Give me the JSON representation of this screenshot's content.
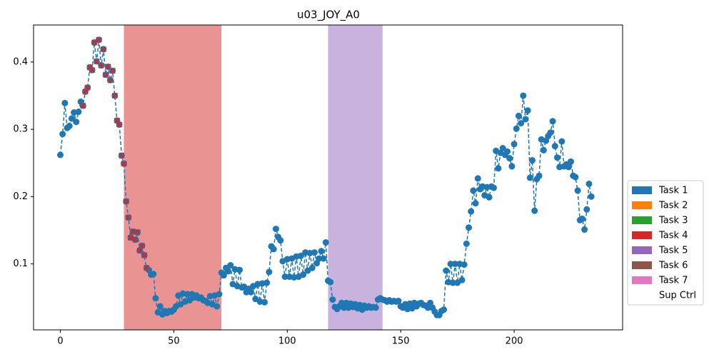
{
  "chart_data": {
    "type": "line",
    "title": "u03_JOY_A0",
    "x": [
      0,
      1,
      2,
      3,
      4,
      5,
      6,
      7,
      8,
      9,
      10,
      11,
      12,
      13,
      14,
      15,
      16,
      17,
      18,
      19,
      20,
      21,
      22,
      23,
      24,
      25,
      26,
      27,
      28,
      29,
      30,
      31,
      32,
      33,
      34,
      35,
      36,
      37,
      38,
      39,
      40,
      41,
      42,
      43,
      44,
      45,
      46,
      47,
      48,
      49,
      50,
      51,
      52,
      53,
      54,
      55,
      56,
      57,
      58,
      59,
      60,
      61,
      62,
      63,
      64,
      65,
      66,
      67,
      68,
      69,
      70,
      71,
      72,
      73,
      74,
      75,
      76,
      77,
      78,
      79,
      80,
      81,
      82,
      83,
      84,
      85,
      86,
      87,
      88,
      89,
      90,
      91,
      92,
      93,
      94,
      95,
      96,
      97,
      98,
      99,
      100,
      101,
      102,
      103,
      104,
      105,
      106,
      107,
      108,
      109,
      110,
      111,
      112,
      113,
      114,
      115,
      116,
      117,
      118,
      119,
      120,
      121,
      122,
      123,
      124,
      125,
      126,
      127,
      128,
      129,
      130,
      131,
      132,
      133,
      134,
      135,
      136,
      137,
      138,
      139,
      140,
      141,
      142,
      143,
      144,
      145,
      146,
      147,
      148,
      149,
      150,
      151,
      152,
      153,
      154,
      155,
      156,
      157,
      158,
      159,
      160,
      161,
      162,
      163,
      164,
      165,
      166,
      167,
      168,
      169,
      170,
      171,
      172,
      173,
      174,
      175,
      176,
      177,
      178,
      179,
      180,
      181,
      182,
      183,
      184,
      185,
      186,
      187,
      188,
      189,
      190,
      191,
      192,
      193,
      194,
      195,
      196,
      197,
      198,
      199,
      200,
      201,
      202,
      203,
      204,
      205,
      206,
      207,
      208,
      209,
      210,
      211,
      212,
      213,
      214,
      215,
      216,
      217,
      218,
      219,
      220,
      221,
      222,
      223,
      224,
      225,
      226,
      227,
      228,
      229,
      230,
      231,
      232,
      233,
      234
    ],
    "series": [
      {
        "color": "#1f77b4",
        "values": [
          0.262,
          0.293,
          0.339,
          0.302,
          0.305,
          0.316,
          0.325,
          0.311,
          0.326,
          0.341,
          0.335,
          0.356,
          0.362,
          0.392,
          0.388,
          0.429,
          0.401,
          0.433,
          0.395,
          0.419,
          0.381,
          0.393,
          0.373,
          0.387,
          0.35,
          0.313,
          0.307,
          0.261,
          0.249,
          0.193,
          0.169,
          0.139,
          0.148,
          0.136,
          0.147,
          0.12,
          0.127,
          0.113,
          0.094,
          0.091,
          0.084,
          0.085,
          0.049,
          0.028,
          0.037,
          0.025,
          0.03,
          0.027,
          0.03,
          0.029,
          0.032,
          0.037,
          0.053,
          0.04,
          0.056,
          0.044,
          0.055,
          0.046,
          0.055,
          0.05,
          0.053,
          0.049,
          0.05,
          0.046,
          0.045,
          0.042,
          0.052,
          0.04,
          0.053,
          0.037,
          0.055,
          0.087,
          0.083,
          0.094,
          0.089,
          0.098,
          0.07,
          0.092,
          0.067,
          0.091,
          0.065,
          0.066,
          0.058,
          0.063,
          0.058,
          0.067,
          0.048,
          0.07,
          0.044,
          0.071,
          0.043,
          0.072,
          0.088,
          0.126,
          0.122,
          0.152,
          0.14,
          0.135,
          0.104,
          0.081,
          0.107,
          0.081,
          0.108,
          0.08,
          0.111,
          0.081,
          0.112,
          0.084,
          0.117,
          0.09,
          0.116,
          0.094,
          0.117,
          0.101,
          0.108,
          0.119,
          0.108,
          0.132,
          0.075,
          0.073,
          0.047,
          0.036,
          0.033,
          0.037,
          0.042,
          0.035,
          0.042,
          0.035,
          0.041,
          0.036,
          0.04,
          0.034,
          0.039,
          0.032,
          0.038,
          0.035,
          0.037,
          0.035,
          0.036,
          0.035,
          0.047,
          0.049,
          0.047,
          0.046,
          0.044,
          0.046,
          0.044,
          0.045,
          0.044,
          0.045,
          0.037,
          0.035,
          0.04,
          0.033,
          0.041,
          0.034,
          0.042,
          0.037,
          0.041,
          0.042,
          0.039,
          0.038,
          0.035,
          0.042,
          0.035,
          0.029,
          0.024,
          0.024,
          0.03,
          0.032,
          0.09,
          0.073,
          0.1,
          0.072,
          0.1,
          0.072,
          0.1,
          0.076,
          0.099,
          0.13,
          0.154,
          0.178,
          0.209,
          0.19,
          0.227,
          0.211,
          0.215,
          0.202,
          0.214,
          0.199,
          0.215,
          0.213,
          0.268,
          0.242,
          0.265,
          0.272,
          0.262,
          0.267,
          0.257,
          0.245,
          0.278,
          0.301,
          0.32,
          0.309,
          0.35,
          0.315,
          0.328,
          0.228,
          0.254,
          0.179,
          0.226,
          0.231,
          0.285,
          0.269,
          0.283,
          0.29,
          0.295,
          0.312,
          0.275,
          0.258,
          0.244,
          0.282,
          0.245,
          0.248,
          0.244,
          0.252,
          0.231,
          0.229,
          0.209,
          0.165,
          0.167,
          0.151,
          0.181,
          0.219,
          0.2
        ]
      }
    ],
    "spans": [
      {
        "start": 28,
        "end": 71,
        "color": "#d62728"
      },
      {
        "start": 118,
        "end": 142,
        "color": "#9467bd"
      }
    ],
    "highlight": {
      "from": 10,
      "to": 38,
      "color": "#d62728"
    },
    "xlim": [
      -11.8,
      247.8
    ],
    "ylim": [
      0.002,
      0.455
    ],
    "xticks": [
      0,
      50,
      100,
      150,
      200
    ],
    "yticks": [
      0.1,
      0.2,
      0.3,
      0.4
    ],
    "legend": [
      {
        "name": "Task 1",
        "color": "#1f77b4"
      },
      {
        "name": "Task 2",
        "color": "#ff7f0e"
      },
      {
        "name": "Task 3",
        "color": "#2ca02c"
      },
      {
        "name": "Task 4",
        "color": "#d62728"
      },
      {
        "name": "Task 5",
        "color": "#9467bd"
      },
      {
        "name": "Task 6",
        "color": "#8c564b"
      },
      {
        "name": "Task 7",
        "color": "#e377c2"
      },
      {
        "name": "Sup Ctrl",
        "color": "#ffffff"
      }
    ]
  }
}
